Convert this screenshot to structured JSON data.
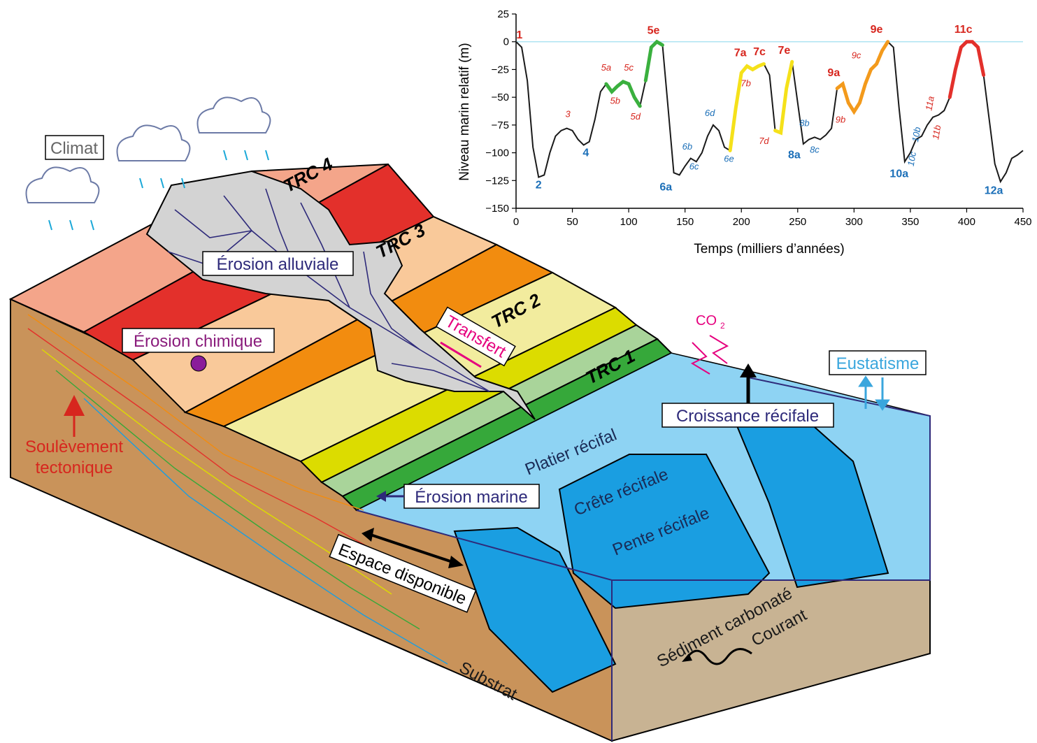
{
  "labels": {
    "climat": "Climat",
    "erosion_alluviale": "Érosion alluviale",
    "erosion_chimique": "Érosion chimique",
    "transfert": "Transfert",
    "soulevement_line1": "Soulèvement",
    "soulevement_line2": "tectonique",
    "co2": "CO",
    "co2_sub": "2",
    "eustatisme": "Eustatisme",
    "croissance_recifale": "Croissance récifale",
    "platier_recifal": "Platier récifal",
    "crete_recifale": "Crête récifale",
    "pente_recifale": "Pente récifale",
    "erosion_marine": "Érosion marine",
    "espace_disponible": "Espace disponible",
    "sediment_carbonate": "Sédiment carbonaté",
    "courant": "Courant",
    "substrat": "Substrat",
    "trc4": "TRC 4",
    "trc3": "TRC 3",
    "trc2": "TRC 2",
    "trc1": "TRC 1"
  },
  "colors": {
    "trc4": "#f4a58a",
    "trc3_dark": "#e3302b",
    "trc3_light": "#f9c99a",
    "trc2_dark": "#f28c0f",
    "trc2_light": "#f2ec9e",
    "trc1_dark": "#dcdc00",
    "trc1_light": "#a9d49a",
    "trc0": "#36a83a",
    "ocean_light": "#8ed3f3",
    "ocean_dark": "#1a9ee1",
    "substrat": "#c9935a",
    "sediment": "#c8b393",
    "erosion": "#cfcfcf",
    "transfer_pink": "#e6007e",
    "eustatism_blue": "#3aa6dd",
    "tectonic_red": "#d7261e"
  },
  "chart_data": {
    "type": "line",
    "xlabel": "Temps (milliers d’années)",
    "ylabel": "Niveau marin relatif (m)",
    "xlim": [
      0,
      450
    ],
    "ylim": [
      -150,
      25
    ],
    "xticks": [
      0,
      50,
      100,
      150,
      200,
      250,
      300,
      350,
      400,
      450
    ],
    "yticks": [
      25,
      0,
      -25,
      -50,
      -75,
      -100,
      -125,
      -150
    ],
    "grid": false,
    "series": [
      {
        "x": [
          0,
          5,
          10,
          15,
          20,
          25,
          30,
          35,
          40,
          45,
          50,
          55,
          60,
          65,
          70,
          75,
          80,
          85,
          90,
          95,
          100,
          105,
          110,
          115,
          120,
          125,
          130,
          135,
          140,
          145,
          150,
          155,
          160,
          165,
          170,
          175,
          180,
          185,
          190,
          195,
          200,
          205,
          210,
          215,
          220,
          225,
          230,
          235,
          240,
          245,
          250,
          255,
          260,
          265,
          270,
          275,
          280,
          285,
          290,
          295,
          300,
          305,
          310,
          315,
          320,
          325,
          330,
          335,
          340,
          345,
          350,
          355,
          360,
          365,
          370,
          375,
          380,
          385,
          390,
          395,
          400,
          405,
          410,
          415,
          420,
          425,
          430,
          435,
          440,
          445,
          450
        ],
        "y": [
          0,
          -5,
          -35,
          -95,
          -122,
          -120,
          -100,
          -85,
          -80,
          -78,
          -80,
          -88,
          -93,
          -90,
          -70,
          -45,
          -38,
          -45,
          -40,
          -36,
          -38,
          -50,
          -58,
          -35,
          -5,
          0,
          -3,
          -60,
          -118,
          -120,
          -112,
          -105,
          -108,
          -100,
          -85,
          -75,
          -80,
          -95,
          -98,
          -60,
          -28,
          -22,
          -25,
          -22,
          -20,
          -30,
          -80,
          -82,
          -42,
          -18,
          -55,
          -92,
          -88,
          -86,
          -88,
          -84,
          -78,
          -42,
          -38,
          -55,
          -63,
          -55,
          -38,
          -25,
          -20,
          -8,
          0,
          -5,
          -60,
          -108,
          -100,
          -88,
          -85,
          -75,
          -68,
          -66,
          -62,
          -50,
          -25,
          -5,
          0,
          0,
          -5,
          -30,
          -70,
          -110,
          -126,
          -118,
          -105,
          -102,
          -98
        ],
        "segments": [
          {
            "from": 78,
            "to": 113,
            "color": "#3ab03e"
          },
          {
            "from": 113,
            "to": 133,
            "color": "#3ab03e"
          },
          {
            "from": 188,
            "to": 222,
            "color": "#f5e11a"
          },
          {
            "from": 230,
            "to": 246,
            "color": "#f5e11a"
          },
          {
            "from": 282,
            "to": 333,
            "color": "#f39a1c"
          },
          {
            "from": 385,
            "to": 418,
            "color": "#e3302b"
          }
        ]
      }
    ],
    "peak_labels": [
      {
        "text": "1",
        "x": 3,
        "y": 3,
        "style": "red-bold"
      },
      {
        "text": "2",
        "x": 20,
        "y": -132,
        "style": "blue-bold"
      },
      {
        "text": "3",
        "x": 46,
        "y": -68,
        "style": "red-it"
      },
      {
        "text": "4",
        "x": 62,
        "y": -103,
        "style": "blue-bold"
      },
      {
        "text": "5a",
        "x": 80,
        "y": -26,
        "style": "red-it"
      },
      {
        "text": "5b",
        "x": 88,
        "y": -56,
        "style": "red-it"
      },
      {
        "text": "5c",
        "x": 100,
        "y": -26,
        "style": "red-it"
      },
      {
        "text": "5d",
        "x": 106,
        "y": -70,
        "style": "red-it"
      },
      {
        "text": "5e",
        "x": 122,
        "y": 7,
        "style": "red-bold"
      },
      {
        "text": "6a",
        "x": 133,
        "y": -134,
        "style": "blue-bold"
      },
      {
        "text": "6b",
        "x": 152,
        "y": -97,
        "style": "blue-it"
      },
      {
        "text": "6c",
        "x": 158,
        "y": -115,
        "style": "blue-it"
      },
      {
        "text": "6d",
        "x": 172,
        "y": -67,
        "style": "blue-it"
      },
      {
        "text": "6e",
        "x": 189,
        "y": -108,
        "style": "blue-it"
      },
      {
        "text": "7a",
        "x": 199,
        "y": -13,
        "style": "red-bold"
      },
      {
        "text": "7b",
        "x": 204,
        "y": -40,
        "style": "red-it"
      },
      {
        "text": "7c",
        "x": 216,
        "y": -12,
        "style": "red-bold"
      },
      {
        "text": "7d",
        "x": 220,
        "y": -92,
        "style": "red-it"
      },
      {
        "text": "7e",
        "x": 238,
        "y": -11,
        "style": "red-bold"
      },
      {
        "text": "8a",
        "x": 247,
        "y": -105,
        "style": "blue-bold"
      },
      {
        "text": "8b",
        "x": 256,
        "y": -76,
        "style": "blue-it"
      },
      {
        "text": "8c",
        "x": 265,
        "y": -100,
        "style": "blue-it"
      },
      {
        "text": "9a",
        "x": 282,
        "y": -31,
        "style": "red-bold"
      },
      {
        "text": "9b",
        "x": 288,
        "y": -73,
        "style": "red-it"
      },
      {
        "text": "9c",
        "x": 302,
        "y": -15,
        "style": "red-it"
      },
      {
        "text": "9e",
        "x": 320,
        "y": 8,
        "style": "red-bold"
      },
      {
        "text": "10a",
        "x": 340,
        "y": -122,
        "style": "blue-bold"
      },
      {
        "text": "10b",
        "x": 358,
        "y": -84,
        "style": "blue-it-rot"
      },
      {
        "text": "10c",
        "x": 354,
        "y": -106,
        "style": "blue-it-rot"
      },
      {
        "text": "11a",
        "x": 370,
        "y": -56,
        "style": "red-it-rot"
      },
      {
        "text": "11b",
        "x": 376,
        "y": -82,
        "style": "red-it-rot"
      },
      {
        "text": "11c",
        "x": 397,
        "y": 8,
        "style": "red-bold"
      },
      {
        "text": "12a",
        "x": 424,
        "y": -137,
        "style": "blue-bold"
      }
    ]
  }
}
